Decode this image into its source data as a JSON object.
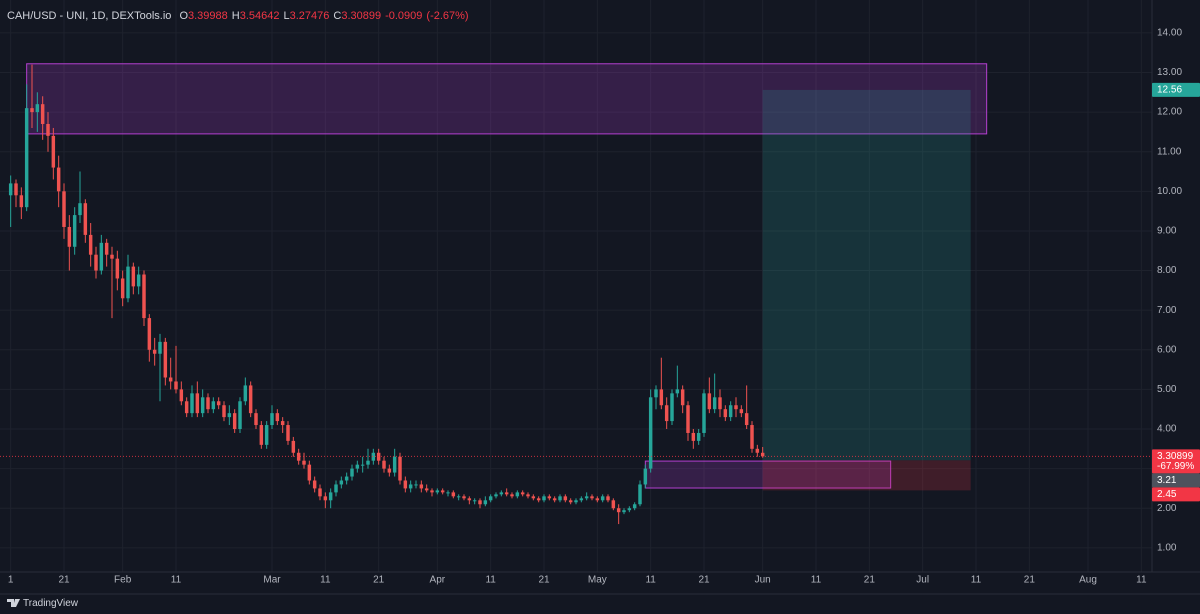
{
  "chart_data": {
    "type": "candlestick",
    "title": "CAH/USD - UNI, 1D, DEXTools.io",
    "ohlc_labels": [
      "O",
      "H",
      "L",
      "C"
    ],
    "change": -0.0909,
    "change_pct": {
      "value": -2.67,
      "label": "(-2.67%)"
    },
    "price_change_pct": {
      "value": -67.99,
      "label": "-67.99%"
    },
    "brand": "TradingView",
    "up_color": "#26a69a",
    "down_color": "#ef5350",
    "grid": true,
    "xlim": [
      "Jan 9",
      "Aug 13"
    ],
    "ylim": [
      0.39,
      14.83
    ],
    "yticks": [
      {
        "value": 1,
        "label": "1.00"
      },
      {
        "value": 2,
        "label": "2.00"
      },
      {
        "value": 3,
        "label": "3.00"
      },
      {
        "value": 4,
        "label": "4.00"
      },
      {
        "value": 5,
        "label": "5.00"
      },
      {
        "value": 6,
        "label": "6.00"
      },
      {
        "value": 7,
        "label": "7.00"
      },
      {
        "value": 8,
        "label": "8.00"
      },
      {
        "value": 9,
        "label": "9.00"
      },
      {
        "value": 10,
        "label": "10.00"
      },
      {
        "value": 11,
        "label": "11.00"
      },
      {
        "value": 12,
        "label": "12.00"
      },
      {
        "value": 13,
        "label": "13.00"
      },
      {
        "value": 14,
        "label": "14.00"
      }
    ],
    "xticks": [
      {
        "value": "Jan 11",
        "label": "1"
      },
      {
        "value": "Jan 21",
        "label": "21"
      },
      {
        "value": "Feb 1",
        "label": "Feb"
      },
      {
        "value": "Feb 11",
        "label": "11"
      },
      {
        "value": "Mar 1",
        "label": "Mar"
      },
      {
        "value": "Mar 11",
        "label": "11"
      },
      {
        "value": "Mar 21",
        "label": "21"
      },
      {
        "value": "Apr 1",
        "label": "Apr"
      },
      {
        "value": "Apr 11",
        "label": "11"
      },
      {
        "value": "Apr 21",
        "label": "21"
      },
      {
        "value": "May 1",
        "label": "May"
      },
      {
        "value": "May 11",
        "label": "11"
      },
      {
        "value": "May 21",
        "label": "21"
      },
      {
        "value": "Jun 1",
        "label": "Jun"
      },
      {
        "value": "Jun 11",
        "label": "11"
      },
      {
        "value": "Jun 21",
        "label": "21"
      },
      {
        "value": "Jul 1",
        "label": "Jul"
      },
      {
        "value": "Jul 11",
        "label": "11"
      },
      {
        "value": "Jul 21",
        "label": "21"
      },
      {
        "value": "Aug 1",
        "label": "Aug"
      },
      {
        "value": "Aug 11",
        "label": "11"
      }
    ],
    "zones": [
      {
        "x": [
          "Jan 14",
          "Jul 13"
        ],
        "y": [
          11.45,
          13.22
        ],
        "color": "#b33fd0"
      },
      {
        "x": [
          "May 10",
          "Jun 25"
        ],
        "y": [
          2.51,
          3.19
        ],
        "color": "#b33fd0"
      }
    ],
    "position": {
      "x": [
        "Jun 1",
        "Jul 10"
      ],
      "target": 12.56,
      "entry": 3.21,
      "stop": 2.45
    },
    "x": [
      "Jan 11",
      "Jan 12",
      "Jan 13",
      "Jan 14",
      "Jan 15",
      "Jan 16",
      "Jan 17",
      "Jan 18",
      "Jan 19",
      "Jan 20",
      "Jan 21",
      "Jan 22",
      "Jan 23",
      "Jan 24",
      "Jan 25",
      "Jan 26",
      "Jan 27",
      "Jan 28",
      "Jan 29",
      "Jan 30",
      "Jan 31",
      "Feb 1",
      "Feb 2",
      "Feb 3",
      "Feb 4",
      "Feb 5",
      "Feb 6",
      "Feb 7",
      "Feb 8",
      "Feb 9",
      "Feb 10",
      "Feb 11",
      "Feb 12",
      "Feb 13",
      "Feb 14",
      "Feb 15",
      "Feb 16",
      "Feb 17",
      "Feb 18",
      "Feb 19",
      "Feb 20",
      "Feb 21",
      "Feb 22",
      "Feb 23",
      "Feb 24",
      "Feb 25",
      "Feb 26",
      "Feb 27",
      "Feb 28",
      "Mar 1",
      "Mar 2",
      "Mar 3",
      "Mar 4",
      "Mar 5",
      "Mar 6",
      "Mar 7",
      "Mar 8",
      "Mar 9",
      "Mar 10",
      "Mar 11",
      "Mar 12",
      "Mar 13",
      "Mar 14",
      "Mar 15",
      "Mar 16",
      "Mar 17",
      "Mar 18",
      "Mar 19",
      "Mar 20",
      "Mar 21",
      "Mar 22",
      "Mar 23",
      "Mar 24",
      "Mar 25",
      "Mar 26",
      "Mar 27",
      "Mar 28",
      "Mar 29",
      "Mar 30",
      "Mar 31",
      "Apr 1",
      "Apr 2",
      "Apr 3",
      "Apr 4",
      "Apr 5",
      "Apr 6",
      "Apr 7",
      "Apr 8",
      "Apr 9",
      "Apr 10",
      "Apr 11",
      "Apr 12",
      "Apr 13",
      "Apr 14",
      "Apr 15",
      "Apr 16",
      "Apr 17",
      "Apr 18",
      "Apr 19",
      "Apr 20",
      "Apr 21",
      "Apr 22",
      "Apr 23",
      "Apr 24",
      "Apr 25",
      "Apr 26",
      "Apr 27",
      "Apr 28",
      "Apr 29",
      "Apr 30",
      "May 1",
      "May 2",
      "May 3",
      "May 4",
      "May 5",
      "May 6",
      "May 7",
      "May 8",
      "May 9",
      "May 10",
      "May 11",
      "May 12",
      "May 13",
      "May 14",
      "May 15",
      "May 16",
      "May 17",
      "May 18",
      "May 19",
      "May 20",
      "May 21",
      "May 22",
      "May 23",
      "May 24",
      "May 25",
      "May 26",
      "May 27",
      "May 28",
      "May 29",
      "May 30",
      "May 31",
      "Jun 1"
    ],
    "ohlc": [
      [
        9.9,
        10.4,
        9.1,
        10.2
      ],
      [
        10.2,
        10.3,
        9.6,
        9.9
      ],
      [
        9.9,
        10.1,
        9.3,
        9.6
      ],
      [
        9.6,
        12.7,
        9.5,
        12.1
      ],
      [
        12.1,
        13.2,
        11.6,
        12.0
      ],
      [
        12.0,
        12.5,
        11.5,
        12.2
      ],
      [
        12.2,
        12.4,
        11.3,
        11.7
      ],
      [
        11.7,
        12.0,
        11.0,
        11.4
      ],
      [
        11.4,
        11.6,
        10.3,
        10.6
      ],
      [
        10.6,
        10.9,
        9.6,
        10.0
      ],
      [
        10.0,
        10.2,
        8.8,
        9.1
      ],
      [
        9.1,
        9.4,
        8.0,
        8.6
      ],
      [
        8.6,
        9.6,
        8.4,
        9.4
      ],
      [
        9.4,
        10.5,
        9.2,
        9.7
      ],
      [
        9.7,
        9.8,
        8.7,
        8.9
      ],
      [
        8.9,
        9.2,
        8.1,
        8.4
      ],
      [
        8.4,
        8.6,
        7.8,
        8.0
      ],
      [
        8.0,
        8.9,
        7.9,
        8.7
      ],
      [
        8.7,
        8.8,
        8.1,
        8.4
      ],
      [
        8.4,
        8.6,
        6.8,
        8.3
      ],
      [
        8.3,
        8.5,
        7.5,
        7.8
      ],
      [
        7.8,
        8.0,
        7.1,
        7.3
      ],
      [
        7.3,
        8.4,
        7.2,
        8.1
      ],
      [
        8.1,
        8.2,
        7.4,
        7.6
      ],
      [
        7.6,
        8.1,
        7.4,
        7.9
      ],
      [
        7.9,
        8.0,
        6.6,
        6.8
      ],
      [
        6.8,
        6.9,
        5.7,
        6.0
      ],
      [
        6.0,
        6.3,
        5.6,
        5.9
      ],
      [
        5.9,
        6.4,
        4.7,
        6.2
      ],
      [
        6.2,
        6.3,
        5.1,
        5.3
      ],
      [
        5.3,
        5.8,
        5.0,
        5.2
      ],
      [
        5.2,
        6.1,
        4.9,
        5.0
      ],
      [
        5.0,
        5.2,
        4.6,
        4.7
      ],
      [
        4.7,
        4.8,
        4.3,
        4.4
      ],
      [
        4.4,
        5.1,
        4.3,
        4.9
      ],
      [
        4.9,
        5.2,
        4.3,
        4.4
      ],
      [
        4.4,
        5.0,
        4.3,
        4.8
      ],
      [
        4.8,
        4.9,
        4.4,
        4.5
      ],
      [
        4.5,
        4.8,
        4.4,
        4.7
      ],
      [
        4.7,
        4.8,
        4.5,
        4.6
      ],
      [
        4.6,
        4.7,
        4.2,
        4.3
      ],
      [
        4.3,
        4.6,
        4.1,
        4.4
      ],
      [
        4.4,
        4.5,
        3.9,
        4.0
      ],
      [
        4.0,
        4.8,
        3.9,
        4.7
      ],
      [
        4.7,
        5.3,
        4.6,
        5.1
      ],
      [
        5.1,
        5.2,
        4.3,
        4.4
      ],
      [
        4.4,
        4.5,
        4.0,
        4.1
      ],
      [
        4.1,
        4.2,
        3.5,
        3.6
      ],
      [
        3.6,
        4.2,
        3.5,
        4.1
      ],
      [
        4.1,
        4.6,
        4.0,
        4.4
      ],
      [
        4.4,
        4.5,
        4.1,
        4.2
      ],
      [
        4.2,
        4.3,
        3.9,
        4.1
      ],
      [
        4.1,
        4.2,
        3.6,
        3.7
      ],
      [
        3.7,
        3.8,
        3.3,
        3.4
      ],
      [
        3.4,
        3.5,
        3.1,
        3.2
      ],
      [
        3.2,
        3.4,
        3.0,
        3.1
      ],
      [
        3.1,
        3.2,
        2.6,
        2.7
      ],
      [
        2.7,
        2.8,
        2.4,
        2.5
      ],
      [
        2.5,
        2.6,
        2.2,
        2.3
      ],
      [
        2.3,
        2.4,
        2.0,
        2.2
      ],
      [
        2.2,
        2.5,
        2.0,
        2.4
      ],
      [
        2.4,
        2.7,
        2.3,
        2.6
      ],
      [
        2.6,
        2.8,
        2.5,
        2.7
      ],
      [
        2.7,
        2.9,
        2.6,
        2.8
      ],
      [
        2.8,
        3.1,
        2.7,
        3.0
      ],
      [
        3.0,
        3.2,
        2.9,
        3.1
      ],
      [
        3.1,
        3.3,
        2.9,
        3.1
      ],
      [
        3.1,
        3.5,
        3.0,
        3.2
      ],
      [
        3.2,
        3.5,
        3.1,
        3.4
      ],
      [
        3.4,
        3.5,
        3.1,
        3.2
      ],
      [
        3.2,
        3.3,
        2.9,
        3.0
      ],
      [
        3.0,
        3.1,
        2.8,
        2.9
      ],
      [
        2.9,
        3.5,
        2.8,
        3.3
      ],
      [
        3.3,
        3.4,
        2.6,
        2.7
      ],
      [
        2.7,
        2.8,
        2.4,
        2.5
      ],
      [
        2.5,
        2.7,
        2.4,
        2.6
      ],
      [
        2.6,
        2.7,
        2.5,
        2.6
      ],
      [
        2.6,
        2.7,
        2.4,
        2.5
      ],
      [
        2.5,
        2.6,
        2.4,
        2.45
      ],
      [
        2.45,
        2.5,
        2.3,
        2.4
      ],
      [
        2.4,
        2.5,
        2.35,
        2.45
      ],
      [
        2.45,
        2.5,
        2.35,
        2.4
      ],
      [
        2.4,
        2.45,
        2.3,
        2.4
      ],
      [
        2.4,
        2.45,
        2.25,
        2.3
      ],
      [
        2.3,
        2.35,
        2.2,
        2.3
      ],
      [
        2.3,
        2.35,
        2.2,
        2.25
      ],
      [
        2.25,
        2.3,
        2.1,
        2.2
      ],
      [
        2.2,
        2.25,
        2.1,
        2.2
      ],
      [
        2.2,
        2.25,
        2.0,
        2.1
      ],
      [
        2.1,
        2.3,
        2.05,
        2.2
      ],
      [
        2.2,
        2.35,
        2.15,
        2.3
      ],
      [
        2.3,
        2.4,
        2.25,
        2.35
      ],
      [
        2.35,
        2.45,
        2.3,
        2.4
      ],
      [
        2.4,
        2.5,
        2.3,
        2.35
      ],
      [
        2.35,
        2.4,
        2.25,
        2.3
      ],
      [
        2.3,
        2.45,
        2.25,
        2.4
      ],
      [
        2.4,
        2.45,
        2.3,
        2.35
      ],
      [
        2.35,
        2.4,
        2.25,
        2.3
      ],
      [
        2.3,
        2.35,
        2.2,
        2.25
      ],
      [
        2.25,
        2.3,
        2.15,
        2.2
      ],
      [
        2.2,
        2.35,
        2.15,
        2.3
      ],
      [
        2.3,
        2.35,
        2.2,
        2.25
      ],
      [
        2.25,
        2.3,
        2.15,
        2.2
      ],
      [
        2.2,
        2.35,
        2.15,
        2.3
      ],
      [
        2.3,
        2.35,
        2.15,
        2.2
      ],
      [
        2.2,
        2.25,
        2.1,
        2.15
      ],
      [
        2.15,
        2.25,
        2.1,
        2.2
      ],
      [
        2.2,
        2.3,
        2.15,
        2.25
      ],
      [
        2.25,
        2.4,
        2.2,
        2.3
      ],
      [
        2.3,
        2.35,
        2.2,
        2.25
      ],
      [
        2.25,
        2.3,
        2.15,
        2.2
      ],
      [
        2.2,
        2.35,
        2.15,
        2.3
      ],
      [
        2.3,
        2.35,
        2.15,
        2.2
      ],
      [
        2.2,
        2.25,
        1.95,
        2.0
      ],
      [
        2.0,
        2.1,
        1.6,
        1.9
      ],
      [
        1.9,
        2.0,
        1.85,
        1.95
      ],
      [
        1.95,
        2.05,
        1.9,
        2.0
      ],
      [
        2.0,
        2.15,
        1.95,
        2.1
      ],
      [
        2.1,
        2.7,
        2.05,
        2.6
      ],
      [
        2.6,
        3.1,
        2.5,
        3.0
      ],
      [
        3.0,
        5.0,
        2.9,
        4.8
      ],
      [
        4.8,
        5.1,
        4.5,
        5.0
      ],
      [
        5.0,
        5.8,
        4.5,
        4.6
      ],
      [
        4.6,
        4.8,
        4.0,
        4.2
      ],
      [
        4.2,
        5.0,
        4.1,
        4.9
      ],
      [
        4.9,
        5.6,
        4.8,
        5.0
      ],
      [
        5.0,
        5.1,
        4.4,
        4.6
      ],
      [
        4.6,
        4.7,
        3.7,
        3.9
      ],
      [
        3.9,
        4.0,
        3.5,
        3.7
      ],
      [
        3.7,
        4.0,
        3.6,
        3.9
      ],
      [
        3.9,
        5.0,
        3.8,
        4.9
      ],
      [
        4.9,
        5.3,
        4.4,
        4.5
      ],
      [
        4.5,
        5.4,
        4.4,
        4.8
      ],
      [
        4.8,
        5.0,
        4.3,
        4.5
      ],
      [
        4.5,
        4.6,
        4.2,
        4.3
      ],
      [
        4.3,
        4.7,
        4.2,
        4.6
      ],
      [
        4.6,
        4.8,
        4.3,
        4.5
      ],
      [
        4.5,
        4.6,
        4.3,
        4.4
      ],
      [
        4.4,
        5.1,
        4.0,
        4.1
      ],
      [
        4.1,
        4.2,
        3.4,
        3.5
      ],
      [
        3.5,
        3.6,
        3.3,
        3.39988
      ],
      [
        3.39988,
        3.54642,
        3.27476,
        3.30899
      ]
    ]
  }
}
